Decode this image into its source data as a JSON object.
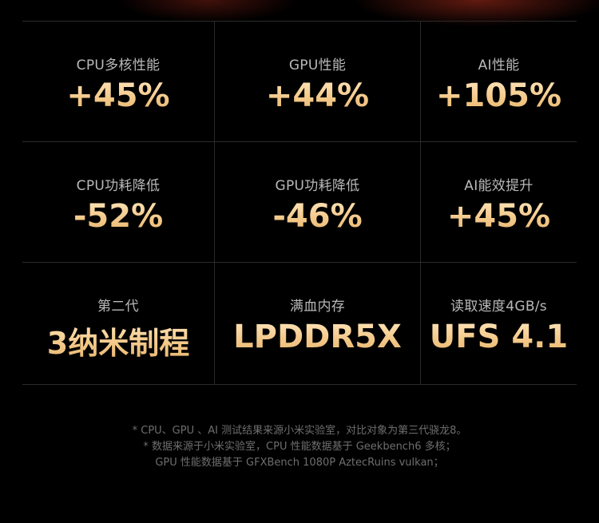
{
  "metrics": [
    [
      {
        "label": "CPU多核性能",
        "value": "+45%"
      },
      {
        "label": "GPU性能",
        "value": "+44%"
      },
      {
        "label": "AI性能",
        "value": "+105%"
      }
    ],
    [
      {
        "label": "CPU功耗降低",
        "value": "-52%"
      },
      {
        "label": "GPU功耗降低",
        "value": "-46%"
      },
      {
        "label": "AI能效提升",
        "value": "+45%"
      }
    ],
    [
      {
        "label": "第二代",
        "value": "3纳米制程"
      },
      {
        "label": "满血内存",
        "value": "LPDDR5X"
      },
      {
        "label": "读取速度4GB/s",
        "value": "UFS 4.1"
      }
    ]
  ],
  "footnotes": [
    "* CPU、GPU 、AI 测试结果来源小米实验室，对比对象为第三代骁龙8。",
    "* 数据来源于小米实验室，CPU 性能数据基于 Geekbench6 多核；",
    "GPU 性能数据基于 GFXBench 1080P AztecRuins vulkan；"
  ]
}
